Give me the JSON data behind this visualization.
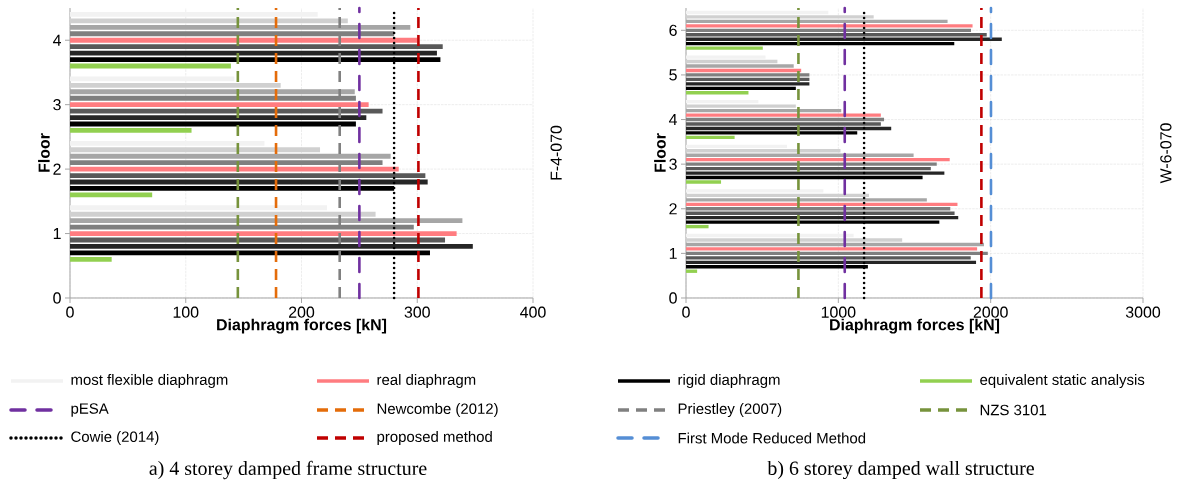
{
  "chart_data": [
    {
      "type": "bar",
      "orientation": "horizontal",
      "title": "a) 4 storey damped frame structure",
      "xlabel": "Diaphragm forces [kN]",
      "ylabel": "Floor",
      "y2label": "F-4-070",
      "x": [
        1,
        2,
        3,
        4
      ],
      "xlim": [
        0,
        400
      ],
      "xticks": [
        0,
        100,
        200,
        300,
        400
      ],
      "ylim": [
        0,
        4.5
      ],
      "yticks": [
        0,
        1,
        2,
        3,
        4
      ],
      "grid": true,
      "legend": "bottom",
      "series": [
        {
          "name": "most flexible diaphragm",
          "color": "#f2f2f2",
          "values": [
            222,
            168,
            142,
            214
          ]
        },
        {
          "color": "#d0d0d0",
          "values": [
            264,
            216,
            182,
            240
          ]
        },
        {
          "color": "#a6a6a6",
          "values": [
            339,
            277,
            246,
            294
          ]
        },
        {
          "color": "#7f7f7f",
          "values": [
            297,
            270,
            247,
            280
          ]
        },
        {
          "name": "real diaphragm",
          "color": "#ff7c80",
          "values": [
            334,
            284,
            258,
            300
          ]
        },
        {
          "color": "#595959",
          "values": [
            324,
            307,
            270,
            322
          ]
        },
        {
          "color": "#262626",
          "values": [
            348,
            309,
            256,
            317
          ]
        },
        {
          "name": "rigid diaphragm",
          "color": "#000000",
          "values": [
            311,
            280,
            247,
            320
          ]
        },
        {
          "name": "equivalent static analysis",
          "color": "#92d050",
          "values": [
            36,
            71,
            105,
            139
          ]
        }
      ],
      "ref_lines": [
        {
          "axis": "x",
          "value": 250,
          "label": "pESA",
          "color": "#7030a0",
          "line_style": "dashdot"
        },
        {
          "axis": "x",
          "value": 178,
          "label": "Newcombe (2012)",
          "color": "#e46c0a",
          "line_style": "dashed"
        },
        {
          "axis": "x",
          "value": 233,
          "label": "Priestley (2007)",
          "color": "#808080",
          "line_style": "dashed"
        },
        {
          "axis": "x",
          "value": 145,
          "label": "NZS 3101",
          "color": "#77933c",
          "line_style": "dashed"
        },
        {
          "axis": "x",
          "value": 280,
          "label": "Cowie (2014)",
          "color": "#000000",
          "line_style": "dotted"
        },
        {
          "axis": "x",
          "value": 301,
          "label": "proposed method",
          "color": "#c00000",
          "line_style": "dashed"
        }
      ]
    },
    {
      "type": "bar",
      "orientation": "horizontal",
      "title": "b) 6 storey damped wall structure",
      "xlabel": "Diaphragm forces [kN]",
      "ylabel": "Floor",
      "y2label": "W-6-070",
      "x": [
        1,
        2,
        3,
        4,
        5,
        6
      ],
      "xlim": [
        0,
        3000
      ],
      "xticks": [
        0,
        1000,
        2000,
        3000
      ],
      "ylim": [
        0,
        6.5
      ],
      "yticks": [
        0,
        1,
        2,
        3,
        4,
        5,
        6
      ],
      "grid": true,
      "legend": "bottom",
      "series": [
        {
          "color": "#f2f2f2",
          "values": [
            1100,
            902,
            663,
            475,
            522,
            934
          ]
        },
        {
          "color": "#d0d0d0",
          "values": [
            1419,
            1201,
            1014,
            721,
            600,
            1232
          ]
        },
        {
          "color": "#a6a6a6",
          "values": [
            1956,
            1581,
            1494,
            1019,
            707,
            1717
          ]
        },
        {
          "color": "#ff7c80",
          "values": [
            1911,
            1782,
            1731,
            1279,
            756,
            1881
          ]
        },
        {
          "color": "#7f7f7f",
          "values": [
            1981,
            1735,
            1646,
            1300,
            810,
            1871
          ]
        },
        {
          "color": "#595959",
          "values": [
            1869,
            1763,
            1607,
            1279,
            810,
            1974
          ]
        },
        {
          "color": "#262626",
          "values": [
            1904,
            1787,
            1696,
            1347,
            810,
            2073
          ]
        },
        {
          "color": "#000000",
          "values": [
            1194,
            1663,
            1553,
            1124,
            721,
            1761
          ]
        },
        {
          "color": "#92d050",
          "values": [
            73,
            148,
            230,
            319,
            410,
            504
          ]
        }
      ],
      "ref_lines": [
        {
          "axis": "x",
          "value": 738,
          "color": "#77933c",
          "line_style": "dashed"
        },
        {
          "axis": "x",
          "value": 1042,
          "color": "#7030a0",
          "line_style": "dashdot"
        },
        {
          "axis": "x",
          "value": 1169,
          "color": "#000000",
          "line_style": "dotted"
        },
        {
          "axis": "x",
          "value": 2002,
          "label": "First Mode Reduced Method",
          "color": "#558ed5",
          "line_style": "dashdot"
        },
        {
          "axis": "x",
          "value": 1939,
          "color": "#c00000",
          "line_style": "dashed"
        }
      ]
    }
  ]
}
